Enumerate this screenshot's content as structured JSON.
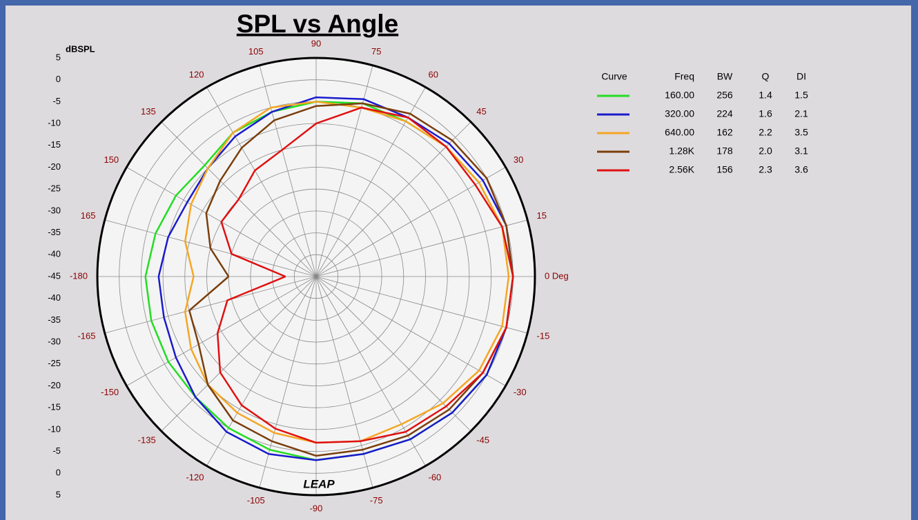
{
  "chart_data": {
    "type": "polar",
    "title": "SPL vs Angle",
    "r_label": "dBSPL",
    "logo": "LEAP",
    "rlim": [
      -45,
      5
    ],
    "rticks": [
      -45,
      -40,
      -35,
      -30,
      -25,
      -20,
      -15,
      -10,
      -5,
      0,
      5
    ],
    "thetaticks": [
      {
        "value": 0,
        "label": "0 Deg"
      },
      15,
      30,
      45,
      60,
      75,
      90,
      105,
      120,
      135,
      150,
      165,
      -180,
      -165,
      -150,
      -135,
      -120,
      -105,
      -90,
      -75,
      -60,
      -45,
      -30,
      -15
    ],
    "grid": true,
    "theta": [
      -180,
      -165,
      -150,
      -135,
      -120,
      -105,
      -90,
      -75,
      -60,
      -45,
      -30,
      -15,
      0,
      15,
      30,
      45,
      60,
      75,
      90,
      105,
      120,
      135,
      150,
      165,
      180
    ],
    "legend_columns": [
      "Curve",
      "Freq",
      "BW",
      "Q",
      "DI"
    ],
    "series": [
      {
        "name": "160.00",
        "color": "#22dd22",
        "bw": "256",
        "q": "1.4",
        "di": "1.5",
        "values": [
          -6,
          -6,
          -6,
          -6,
          -5,
          -4,
          -3,
          -3,
          -2,
          -1,
          0,
          0,
          0,
          -1,
          -2,
          -3,
          -4,
          -4,
          -5,
          -6,
          -7,
          -9,
          -8,
          -7,
          -6
        ]
      },
      {
        "name": "320.00",
        "color": "#1a1acc",
        "bw": "224",
        "q": "1.6",
        "di": "2.1",
        "values": [
          -9,
          -9,
          -8,
          -6,
          -4,
          -3,
          -3,
          -3,
          -2,
          -1,
          0,
          0,
          0,
          0,
          -1,
          -2,
          -3,
          -3,
          -4,
          -6,
          -8,
          -10,
          -11,
          -10,
          -9
        ]
      },
      {
        "name": "640.00",
        "color": "#f5a623",
        "bw": "162",
        "q": "2.2",
        "di": "3.5",
        "values": [
          -17,
          -14,
          -12,
          -10,
          -9,
          -8,
          -7,
          -6,
          -6,
          -4,
          -2,
          -1,
          -1,
          -1,
          -2,
          -3,
          -4,
          -5,
          -5,
          -5,
          -7,
          -10,
          -12,
          -14,
          -17
        ]
      },
      {
        "name": "1.28K",
        "color": "#7a3e0c",
        "bw": "178",
        "q": "2.0",
        "di": "3.1",
        "values": [
          -25,
          -15,
          -14,
          -10,
          -7,
          -6,
          -4,
          -4,
          -3,
          -2,
          -1,
          0,
          0,
          0,
          0,
          -1,
          -2,
          -4,
          -6,
          -8,
          -11,
          -14,
          -16,
          -20,
          -25
        ]
      },
      {
        "name": "2.56K",
        "color": "#e01010",
        "bw": "156",
        "q": "2.3",
        "di": "3.6",
        "values": [
          -38,
          -24,
          -19,
          -14,
          -11,
          -9,
          -7,
          -6,
          -4,
          -3,
          -1,
          0,
          0,
          -1,
          -3,
          -3,
          -3,
          -5,
          -10,
          -15,
          -17,
          -20,
          -20,
          -25,
          -38
        ]
      }
    ]
  }
}
